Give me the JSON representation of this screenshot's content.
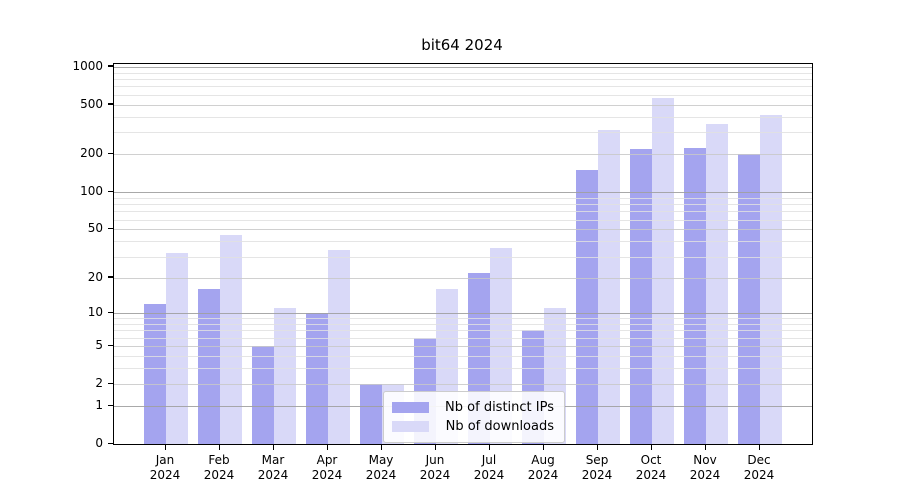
{
  "title": "bit64 2024",
  "chart_data": {
    "type": "bar",
    "title": "bit64 2024",
    "categories": [
      "Jan",
      "Feb",
      "Mar",
      "Apr",
      "May",
      "Jun",
      "Jul",
      "Aug",
      "Sep",
      "Oct",
      "Nov",
      "Dec"
    ],
    "category_year": "2024",
    "series": [
      {
        "name": "Nb of distinct IPs",
        "color": "#a4a4ef",
        "values": [
          12,
          16,
          5,
          10,
          2,
          6,
          22,
          7,
          150,
          220,
          225,
          200
        ]
      },
      {
        "name": "Nb of downloads",
        "color": "#d9d9f8",
        "values": [
          32,
          45,
          11,
          34,
          2,
          16,
          35,
          11,
          315,
          565,
          350,
          415
        ]
      }
    ],
    "xlabel": "",
    "ylabel": "",
    "y_axis": {
      "scale": "log1p",
      "ticks": [
        0,
        1,
        2,
        5,
        10,
        20,
        50,
        100,
        200,
        500,
        1000
      ],
      "range": [
        0,
        1050
      ]
    },
    "grid": "horizontal log gridlines (major decades darker, minors faint), drawn over bars",
    "legend_position": "inside plot, lower middle-right"
  },
  "colors": {
    "bar_distinct_ips": "#a4a4ef",
    "bar_downloads": "#d9d9f8",
    "grid_major": "#a0a0a0",
    "grid_labeled": "#c8c8c8",
    "grid_minor": "#e1e1e1",
    "spine": "#000000",
    "background": "#ffffff"
  }
}
